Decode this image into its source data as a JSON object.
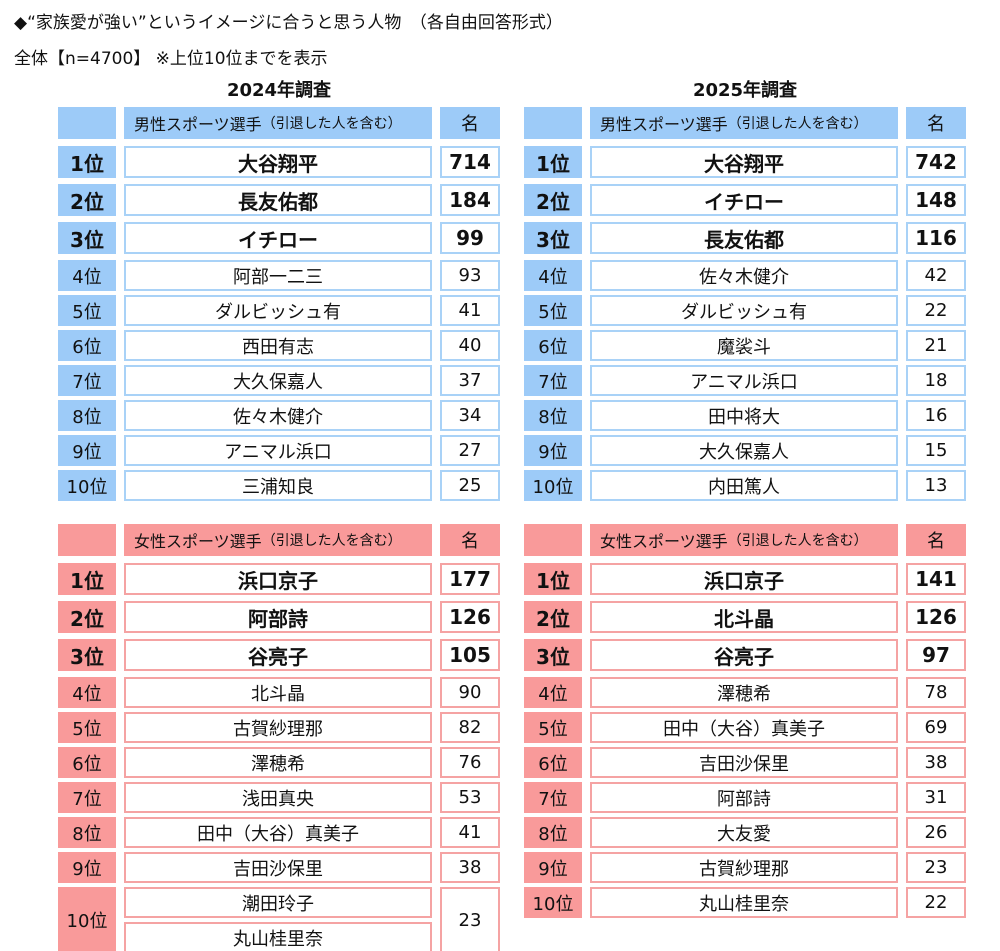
{
  "title": "◆“家族愛が強い”というイメージに合うと思う人物　（各自由回答形式）",
  "subtitle": "全体【n=4700】 ※上位10位までを表示",
  "years": [
    "2024年調査",
    "2025年調査"
  ],
  "colors": {
    "male": "#9dcbf8",
    "female": "#f99a9a"
  },
  "tables": {
    "male_2024": {
      "header": {
        "category": "男性スポーツ選手",
        "note": "（引退した人を含む）",
        "unit": "名"
      },
      "rows": [
        {
          "rank": "1位",
          "names": [
            "大谷翔平"
          ],
          "count": "714"
        },
        {
          "rank": "2位",
          "names": [
            "長友佑都"
          ],
          "count": "184"
        },
        {
          "rank": "3位",
          "names": [
            "イチロー"
          ],
          "count": "99"
        },
        {
          "rank": "4位",
          "names": [
            "阿部一二三"
          ],
          "count": "93"
        },
        {
          "rank": "5位",
          "names": [
            "ダルビッシュ有"
          ],
          "count": "41"
        },
        {
          "rank": "6位",
          "names": [
            "西田有志"
          ],
          "count": "40"
        },
        {
          "rank": "7位",
          "names": [
            "大久保嘉人"
          ],
          "count": "37"
        },
        {
          "rank": "8位",
          "names": [
            "佐々木健介"
          ],
          "count": "34"
        },
        {
          "rank": "9位",
          "names": [
            "アニマル浜口"
          ],
          "count": "27"
        },
        {
          "rank": "10位",
          "names": [
            "三浦知良"
          ],
          "count": "25"
        }
      ]
    },
    "male_2025": {
      "header": {
        "category": "男性スポーツ選手",
        "note": "（引退した人を含む）",
        "unit": "名"
      },
      "rows": [
        {
          "rank": "1位",
          "names": [
            "大谷翔平"
          ],
          "count": "742"
        },
        {
          "rank": "2位",
          "names": [
            "イチロー"
          ],
          "count": "148"
        },
        {
          "rank": "3位",
          "names": [
            "長友佑都"
          ],
          "count": "116"
        },
        {
          "rank": "4位",
          "names": [
            "佐々木健介"
          ],
          "count": "42"
        },
        {
          "rank": "5位",
          "names": [
            "ダルビッシュ有"
          ],
          "count": "22"
        },
        {
          "rank": "6位",
          "names": [
            "魔裟斗"
          ],
          "count": "21"
        },
        {
          "rank": "7位",
          "names": [
            "アニマル浜口"
          ],
          "count": "18"
        },
        {
          "rank": "8位",
          "names": [
            "田中将大"
          ],
          "count": "16"
        },
        {
          "rank": "9位",
          "names": [
            "大久保嘉人"
          ],
          "count": "15"
        },
        {
          "rank": "10位",
          "names": [
            "内田篤人"
          ],
          "count": "13"
        }
      ]
    },
    "female_2024": {
      "header": {
        "category": "女性スポーツ選手",
        "note": "（引退した人を含む）",
        "unit": "名"
      },
      "rows": [
        {
          "rank": "1位",
          "names": [
            "浜口京子"
          ],
          "count": "177"
        },
        {
          "rank": "2位",
          "names": [
            "阿部詩"
          ],
          "count": "126"
        },
        {
          "rank": "3位",
          "names": [
            "谷亮子"
          ],
          "count": "105"
        },
        {
          "rank": "4位",
          "names": [
            "北斗晶"
          ],
          "count": "90"
        },
        {
          "rank": "5位",
          "names": [
            "古賀紗理那"
          ],
          "count": "82"
        },
        {
          "rank": "6位",
          "names": [
            "澤穂希"
          ],
          "count": "76"
        },
        {
          "rank": "7位",
          "names": [
            "浅田真央"
          ],
          "count": "53"
        },
        {
          "rank": "8位",
          "names": [
            "田中（大谷）真美子"
          ],
          "count": "41"
        },
        {
          "rank": "9位",
          "names": [
            "吉田沙保里"
          ],
          "count": "38"
        },
        {
          "rank": "10位",
          "names": [
            "潮田玲子",
            "丸山桂里奈"
          ],
          "count": "23"
        }
      ]
    },
    "female_2025": {
      "header": {
        "category": "女性スポーツ選手",
        "note": "（引退した人を含む）",
        "unit": "名"
      },
      "rows": [
        {
          "rank": "1位",
          "names": [
            "浜口京子"
          ],
          "count": "141"
        },
        {
          "rank": "2位",
          "names": [
            "北斗晶"
          ],
          "count": "126"
        },
        {
          "rank": "3位",
          "names": [
            "谷亮子"
          ],
          "count": "97"
        },
        {
          "rank": "4位",
          "names": [
            "澤穂希"
          ],
          "count": "78"
        },
        {
          "rank": "5位",
          "names": [
            "田中（大谷）真美子"
          ],
          "count": "69"
        },
        {
          "rank": "6位",
          "names": [
            "吉田沙保里"
          ],
          "count": "38"
        },
        {
          "rank": "7位",
          "names": [
            "阿部詩"
          ],
          "count": "31"
        },
        {
          "rank": "8位",
          "names": [
            "大友愛"
          ],
          "count": "26"
        },
        {
          "rank": "9位",
          "names": [
            "古賀紗理那"
          ],
          "count": "23"
        },
        {
          "rank": "10位",
          "names": [
            "丸山桂里奈"
          ],
          "count": "22"
        }
      ]
    }
  }
}
